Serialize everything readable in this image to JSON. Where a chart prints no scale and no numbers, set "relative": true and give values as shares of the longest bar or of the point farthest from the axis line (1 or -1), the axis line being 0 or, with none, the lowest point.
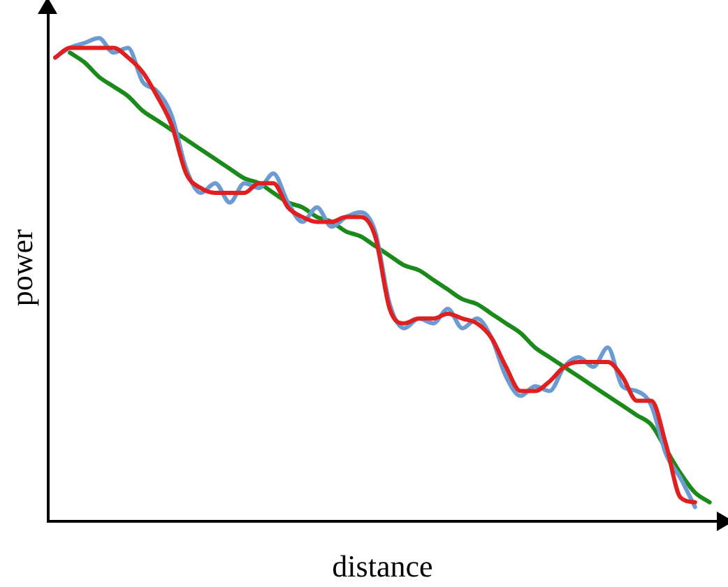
{
  "chart_data": {
    "type": "line",
    "relative": true,
    "xlabel": "distance",
    "ylabel": "power",
    "grid": false,
    "legend": false,
    "marker": "none",
    "line_style": "solid",
    "categories": [
      null,
      null,
      null,
      null,
      null,
      null,
      null,
      null,
      null,
      null,
      null,
      null,
      null,
      null,
      null,
      null,
      null,
      null,
      null,
      null,
      null,
      null,
      null,
      null,
      null,
      null,
      null,
      null,
      null,
      null,
      null,
      null,
      null,
      null,
      null,
      null,
      null,
      null,
      null,
      null,
      null,
      null,
      null,
      null,
      null,
      null
    ],
    "series": [
      {
        "color": "#e02020",
        "values": [
          0.96,
          0.98,
          0.98,
          0.98,
          0.98,
          0.96,
          0.93,
          0.88,
          0.82,
          0.72,
          0.69,
          0.68,
          0.68,
          0.68,
          0.7,
          0.7,
          0.65,
          0.63,
          0.62,
          0.62,
          0.63,
          0.63,
          0.59,
          0.44,
          0.41,
          0.42,
          0.42,
          0.43,
          0.42,
          0.41,
          0.38,
          0.32,
          0.27,
          0.27,
          0.29,
          0.32,
          0.33,
          0.33,
          0.33,
          0.3,
          0.25,
          0.25,
          0.16,
          0.05,
          0.04,
          null
        ]
      },
      {
        "color": "#6b9bd1",
        "values": [
          0.96,
          0.98,
          0.99,
          1.0,
          0.97,
          0.98,
          0.91,
          0.89,
          0.84,
          0.73,
          0.68,
          0.7,
          0.66,
          0.7,
          0.69,
          0.72,
          0.66,
          0.62,
          0.65,
          0.61,
          0.63,
          0.64,
          0.6,
          0.45,
          0.4,
          0.42,
          0.41,
          0.44,
          0.4,
          0.42,
          0.38,
          0.3,
          0.26,
          0.28,
          0.27,
          0.32,
          0.34,
          0.32,
          0.36,
          0.28,
          0.27,
          0.24,
          0.14,
          0.09,
          0.03,
          null
        ]
      },
      {
        "color": "#1a8a1a",
        "values": [
          null,
          0.97,
          0.95,
          0.92,
          0.9,
          0.88,
          0.85,
          0.83,
          0.81,
          0.79,
          0.77,
          0.75,
          0.73,
          0.71,
          0.7,
          0.68,
          0.66,
          0.65,
          0.63,
          0.62,
          0.6,
          0.59,
          0.57,
          0.55,
          0.53,
          0.52,
          0.5,
          0.48,
          0.46,
          0.45,
          0.43,
          0.41,
          0.39,
          0.36,
          0.34,
          0.32,
          0.3,
          0.28,
          0.26,
          0.24,
          0.22,
          0.2,
          0.15,
          0.1,
          0.06,
          0.04
        ]
      }
    ]
  }
}
